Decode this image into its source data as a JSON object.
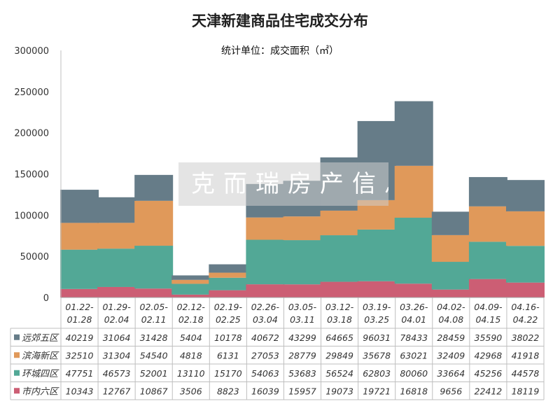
{
  "chart_data": {
    "type": "bar",
    "stacked": true,
    "title": "天津新建商品住宅成交分布",
    "subtitle": "统计单位：成交面积（㎡）",
    "watermark": "克而瑞房产信息",
    "categories": [
      "01.22-\n01.28",
      "01.29-\n02.04",
      "02.05-\n02.11",
      "02.12-\n02.18",
      "02.19-\n02.25",
      "02.26-\n03.04",
      "03.05-\n03.11",
      "03.12-\n03.18",
      "03.19-\n03.25",
      "03.26-\n04.01",
      "04.02-\n04.08",
      "04.09-\n04.15",
      "04.16-\n04.22"
    ],
    "ylim": [
      0,
      300000
    ],
    "yticks": [
      "0",
      "50000",
      "100000",
      "150000",
      "200000",
      "250000",
      "300000"
    ],
    "legend_position": "data-table",
    "series": [
      {
        "name": "远郊五区",
        "color": "#667c88",
        "values": [
          40219,
          31064,
          31428,
          5404,
          10178,
          40672,
          43299,
          64665,
          96031,
          78433,
          28459,
          35590,
          38022
        ]
      },
      {
        "name": "滨海新区",
        "color": "#e0995a",
        "values": [
          32510,
          31304,
          54540,
          4818,
          6131,
          27053,
          28779,
          29849,
          35678,
          63021,
          32409,
          42968,
          41918
        ]
      },
      {
        "name": "环城四区",
        "color": "#52a896",
        "values": [
          47751,
          46573,
          52001,
          13110,
          15170,
          54063,
          53683,
          56524,
          62803,
          80060,
          33664,
          45256,
          44578
        ]
      },
      {
        "name": "市内六区",
        "color": "#cc5e74",
        "values": [
          10343,
          12767,
          10867,
          3506,
          8823,
          16039,
          15957,
          19073,
          19721,
          16818,
          9656,
          22412,
          18119
        ]
      }
    ]
  }
}
